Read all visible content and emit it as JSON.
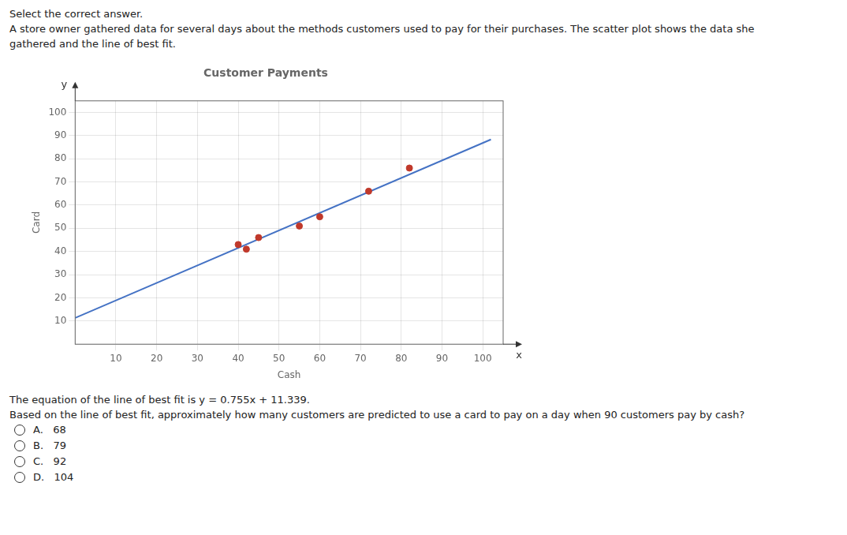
{
  "chart_data": {
    "type": "scatter",
    "title": "Customer Payments",
    "subtitle": [
      "Select the correct answer.",
      "A store owner gathered data for several days about the methods customers used to pay for their purchases. The scatter plot shows the data she",
      "gathered and the line of best fit."
    ],
    "xlabel": "Cash",
    "ylabel": "Card",
    "axis_end_labels": {
      "x": "x",
      "y": "y"
    },
    "series": [
      {
        "type": "scatter",
        "color": "#c0392b",
        "x": [
          40,
          42,
          45,
          55,
          60,
          72,
          82
        ],
        "values": [
          43,
          41,
          46,
          51,
          55,
          66,
          76
        ]
      },
      {
        "type": "line",
        "color": "#4472c4",
        "x": [
          0,
          102
        ],
        "values": [
          11.339,
          88.349
        ]
      }
    ],
    "xlim": [
      0,
      105
    ],
    "ylim": [
      0,
      105
    ],
    "xticks": [
      10,
      20,
      30,
      40,
      50,
      60,
      70,
      80,
      90,
      100
    ],
    "yticks": [
      10,
      20,
      30,
      40,
      50,
      60,
      70,
      80,
      90,
      100
    ],
    "grid": true,
    "legend": false,
    "annotations": [
      "The equation of the line of best fit is y = 0.755x + 11.339.",
      "Based on the line of best fit, approximately how many customers are predicted to use a card to pay on a day when 90 customers pay by cash?"
    ],
    "choices": [
      "A.   68",
      "B.   79",
      "C.   92",
      "D.   104"
    ]
  }
}
